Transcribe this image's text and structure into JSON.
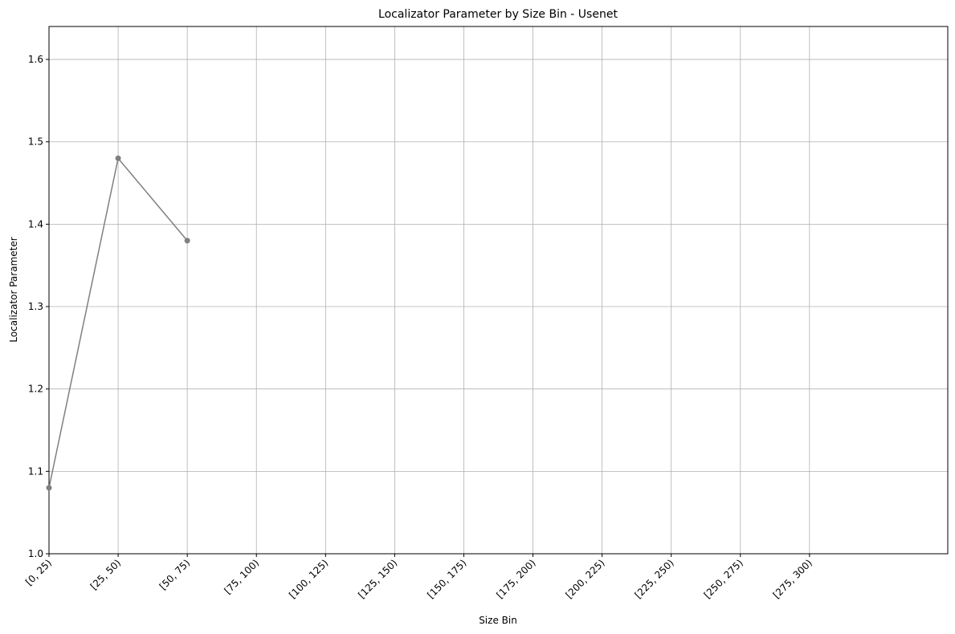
{
  "chart_data": {
    "type": "line",
    "title": "Localizator Parameter by Size Bin - Usenet",
    "xlabel": "Size Bin",
    "ylabel": "Localizator Parameter",
    "categories": [
      "[0, 25)",
      "[25, 50)",
      "[50, 75)",
      "[75, 100)",
      "[100, 125)",
      "[125, 150)",
      "[150, 175)",
      "[175, 200)",
      "[200, 225)",
      "[225, 250)",
      "[250, 275)",
      "[275, 300)"
    ],
    "values": [
      1.08,
      1.48,
      1.38,
      null,
      null,
      null,
      null,
      null,
      null,
      null,
      null,
      null
    ],
    "color": "#7f7f7f",
    "ylim": [
      1.0,
      1.64
    ],
    "yticks": [
      {
        "value": 1,
        "label": "1.0"
      },
      1.1,
      1.2,
      1.3,
      1.4,
      1.5,
      1.6
    ],
    "grid": true
  }
}
